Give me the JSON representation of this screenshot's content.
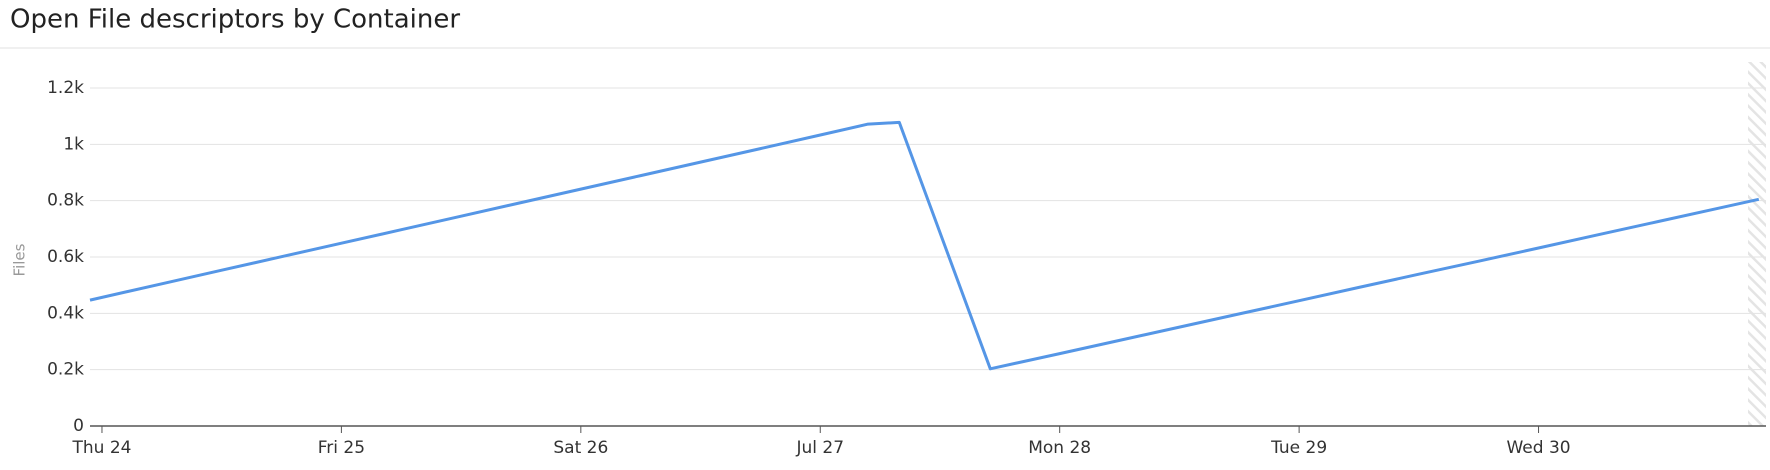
{
  "chart_data": {
    "type": "line",
    "title": "Open File descriptors by Container",
    "y_label": "Files",
    "x": [
      -0.05,
      0.25,
      0.5,
      0.75,
      1.0,
      1.25,
      1.5,
      1.75,
      2.0,
      2.25,
      2.5,
      2.75,
      3.0,
      3.2,
      3.33,
      3.71,
      4.0,
      4.25,
      4.5,
      4.75,
      5.0,
      5.25,
      5.5,
      5.75,
      6.0,
      6.25,
      6.5,
      6.75,
      6.92
    ],
    "values": [
      447,
      505,
      553,
      601,
      649,
      697,
      745,
      793,
      841,
      889,
      937,
      985,
      1033,
      1072,
      1078,
      203,
      257,
      304,
      351,
      398,
      445,
      492,
      539,
      585,
      632,
      679,
      726,
      773,
      805
    ],
    "color": "#5596e6",
    "xlim": [
      -0.05,
      6.95
    ],
    "xticks": [
      {
        "value": 0,
        "label": "Thu 24"
      },
      {
        "value": 1,
        "label": "Fri 25"
      },
      {
        "value": 2,
        "label": "Sat 26"
      },
      {
        "value": 3,
        "label": "Jul 27"
      },
      {
        "value": 4,
        "label": "Mon 28"
      },
      {
        "value": 5,
        "label": "Tue 29"
      },
      {
        "value": 6,
        "label": "Wed 30"
      }
    ],
    "ylim": [
      0,
      1200
    ],
    "yticks": [
      0,
      {
        "value": 200,
        "label": "0.2k"
      },
      {
        "value": 400,
        "label": "0.4k"
      },
      {
        "value": 600,
        "label": "0.6k"
      },
      {
        "value": 800,
        "label": "0.8k"
      },
      {
        "value": 1000,
        "label": "1k"
      },
      {
        "value": 1200,
        "label": "1.2k"
      }
    ],
    "grid": true
  }
}
